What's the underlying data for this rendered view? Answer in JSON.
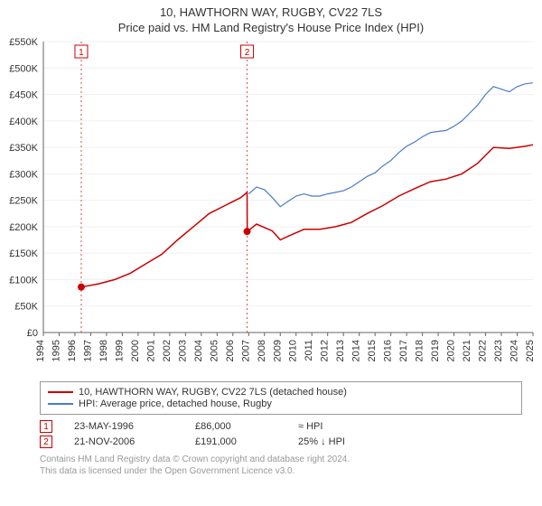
{
  "title": "10, HAWTHORN WAY, RUGBY, CV22 7LS",
  "subtitle": "Price paid vs. HM Land Registry's House Price Index (HPI)",
  "chart": {
    "type": "line",
    "background_color": "#ffffff",
    "grid_color": "#f0f0f0",
    "text_color": "#333333",
    "axis_fontsize": 11,
    "ylim": [
      0,
      550000
    ],
    "ytick_step": 50000,
    "ytick_labels": [
      "£0",
      "£50K",
      "£100K",
      "£150K",
      "£200K",
      "£250K",
      "£300K",
      "£350K",
      "£400K",
      "£450K",
      "£500K",
      "£550K"
    ],
    "xlim": [
      1994,
      2025
    ],
    "xtick_step": 1,
    "xtick_rotate": -90,
    "series": [
      {
        "name": "10, HAWTHORN WAY, RUGBY, CV22 7LS (detached house)",
        "color": "#cc0000",
        "line_width": 1.5,
        "data": [
          [
            1996.4,
            86000
          ],
          [
            1997.5,
            92000
          ],
          [
            1998.5,
            100000
          ],
          [
            1999.5,
            112000
          ],
          [
            2000.5,
            130000
          ],
          [
            2001.5,
            148000
          ],
          [
            2002.5,
            175000
          ],
          [
            2003.5,
            200000
          ],
          [
            2004.5,
            225000
          ],
          [
            2005.5,
            240000
          ],
          [
            2006.5,
            255000
          ],
          [
            2006.9,
            265000
          ],
          [
            2006.91,
            191000
          ],
          [
            2007.5,
            205000
          ],
          [
            2008.5,
            192000
          ],
          [
            2009.0,
            175000
          ],
          [
            2009.5,
            182000
          ],
          [
            2010.5,
            195000
          ],
          [
            2011.5,
            195000
          ],
          [
            2012.5,
            200000
          ],
          [
            2013.5,
            208000
          ],
          [
            2014.5,
            225000
          ],
          [
            2015.5,
            240000
          ],
          [
            2016.5,
            258000
          ],
          [
            2017.5,
            272000
          ],
          [
            2018.5,
            285000
          ],
          [
            2019.5,
            290000
          ],
          [
            2020.5,
            300000
          ],
          [
            2021.5,
            320000
          ],
          [
            2022.5,
            350000
          ],
          [
            2023.5,
            348000
          ],
          [
            2024.5,
            352000
          ],
          [
            2025.0,
            355000
          ]
        ]
      },
      {
        "name": "HPI: Average price, detached house, Rugby",
        "color": "#4a7bc8",
        "line_width": 1.2,
        "data": [
          [
            2007.0,
            262000
          ],
          [
            2007.5,
            275000
          ],
          [
            2008.0,
            270000
          ],
          [
            2008.5,
            255000
          ],
          [
            2009.0,
            238000
          ],
          [
            2009.5,
            248000
          ],
          [
            2010.0,
            258000
          ],
          [
            2010.5,
            262000
          ],
          [
            2011.0,
            258000
          ],
          [
            2011.5,
            258000
          ],
          [
            2012.0,
            262000
          ],
          [
            2012.5,
            265000
          ],
          [
            2013.0,
            268000
          ],
          [
            2013.5,
            275000
          ],
          [
            2014.0,
            285000
          ],
          [
            2014.5,
            295000
          ],
          [
            2015.0,
            302000
          ],
          [
            2015.5,
            315000
          ],
          [
            2016.0,
            325000
          ],
          [
            2016.5,
            340000
          ],
          [
            2017.0,
            352000
          ],
          [
            2017.5,
            360000
          ],
          [
            2018.0,
            370000
          ],
          [
            2018.5,
            378000
          ],
          [
            2019.0,
            380000
          ],
          [
            2019.5,
            382000
          ],
          [
            2020.0,
            390000
          ],
          [
            2020.5,
            400000
          ],
          [
            2021.0,
            415000
          ],
          [
            2021.5,
            430000
          ],
          [
            2022.0,
            450000
          ],
          [
            2022.5,
            465000
          ],
          [
            2023.0,
            460000
          ],
          [
            2023.5,
            455000
          ],
          [
            2024.0,
            465000
          ],
          [
            2024.5,
            470000
          ],
          [
            2025.0,
            472000
          ]
        ]
      }
    ],
    "sale_markers": [
      {
        "n": 1,
        "year": 1996.4,
        "price": 86000
      },
      {
        "n": 2,
        "year": 2006.9,
        "price": 191000
      }
    ],
    "marker_line_color": "#cc0000",
    "marker_dot_color": "#cc0000",
    "marker_box_border": "#cc0000"
  },
  "legend": {
    "border_color": "#999999",
    "items": [
      {
        "color": "#cc0000",
        "label": "10, HAWTHORN WAY, RUGBY, CV22 7LS (detached house)"
      },
      {
        "color": "#4a7bc8",
        "label": "HPI: Average price, detached house, Rugby"
      }
    ]
  },
  "sales_table": {
    "rows": [
      {
        "n": "1",
        "date": "23-MAY-1996",
        "price": "£86,000",
        "diff": "≈ HPI"
      },
      {
        "n": "2",
        "date": "21-NOV-2006",
        "price": "£191,000",
        "diff": "25% ↓ HPI"
      }
    ]
  },
  "attribution": {
    "line1": "Contains HM Land Registry data © Crown copyright and database right 2024.",
    "line2": "This data is licensed under the Open Government Licence v3.0."
  }
}
